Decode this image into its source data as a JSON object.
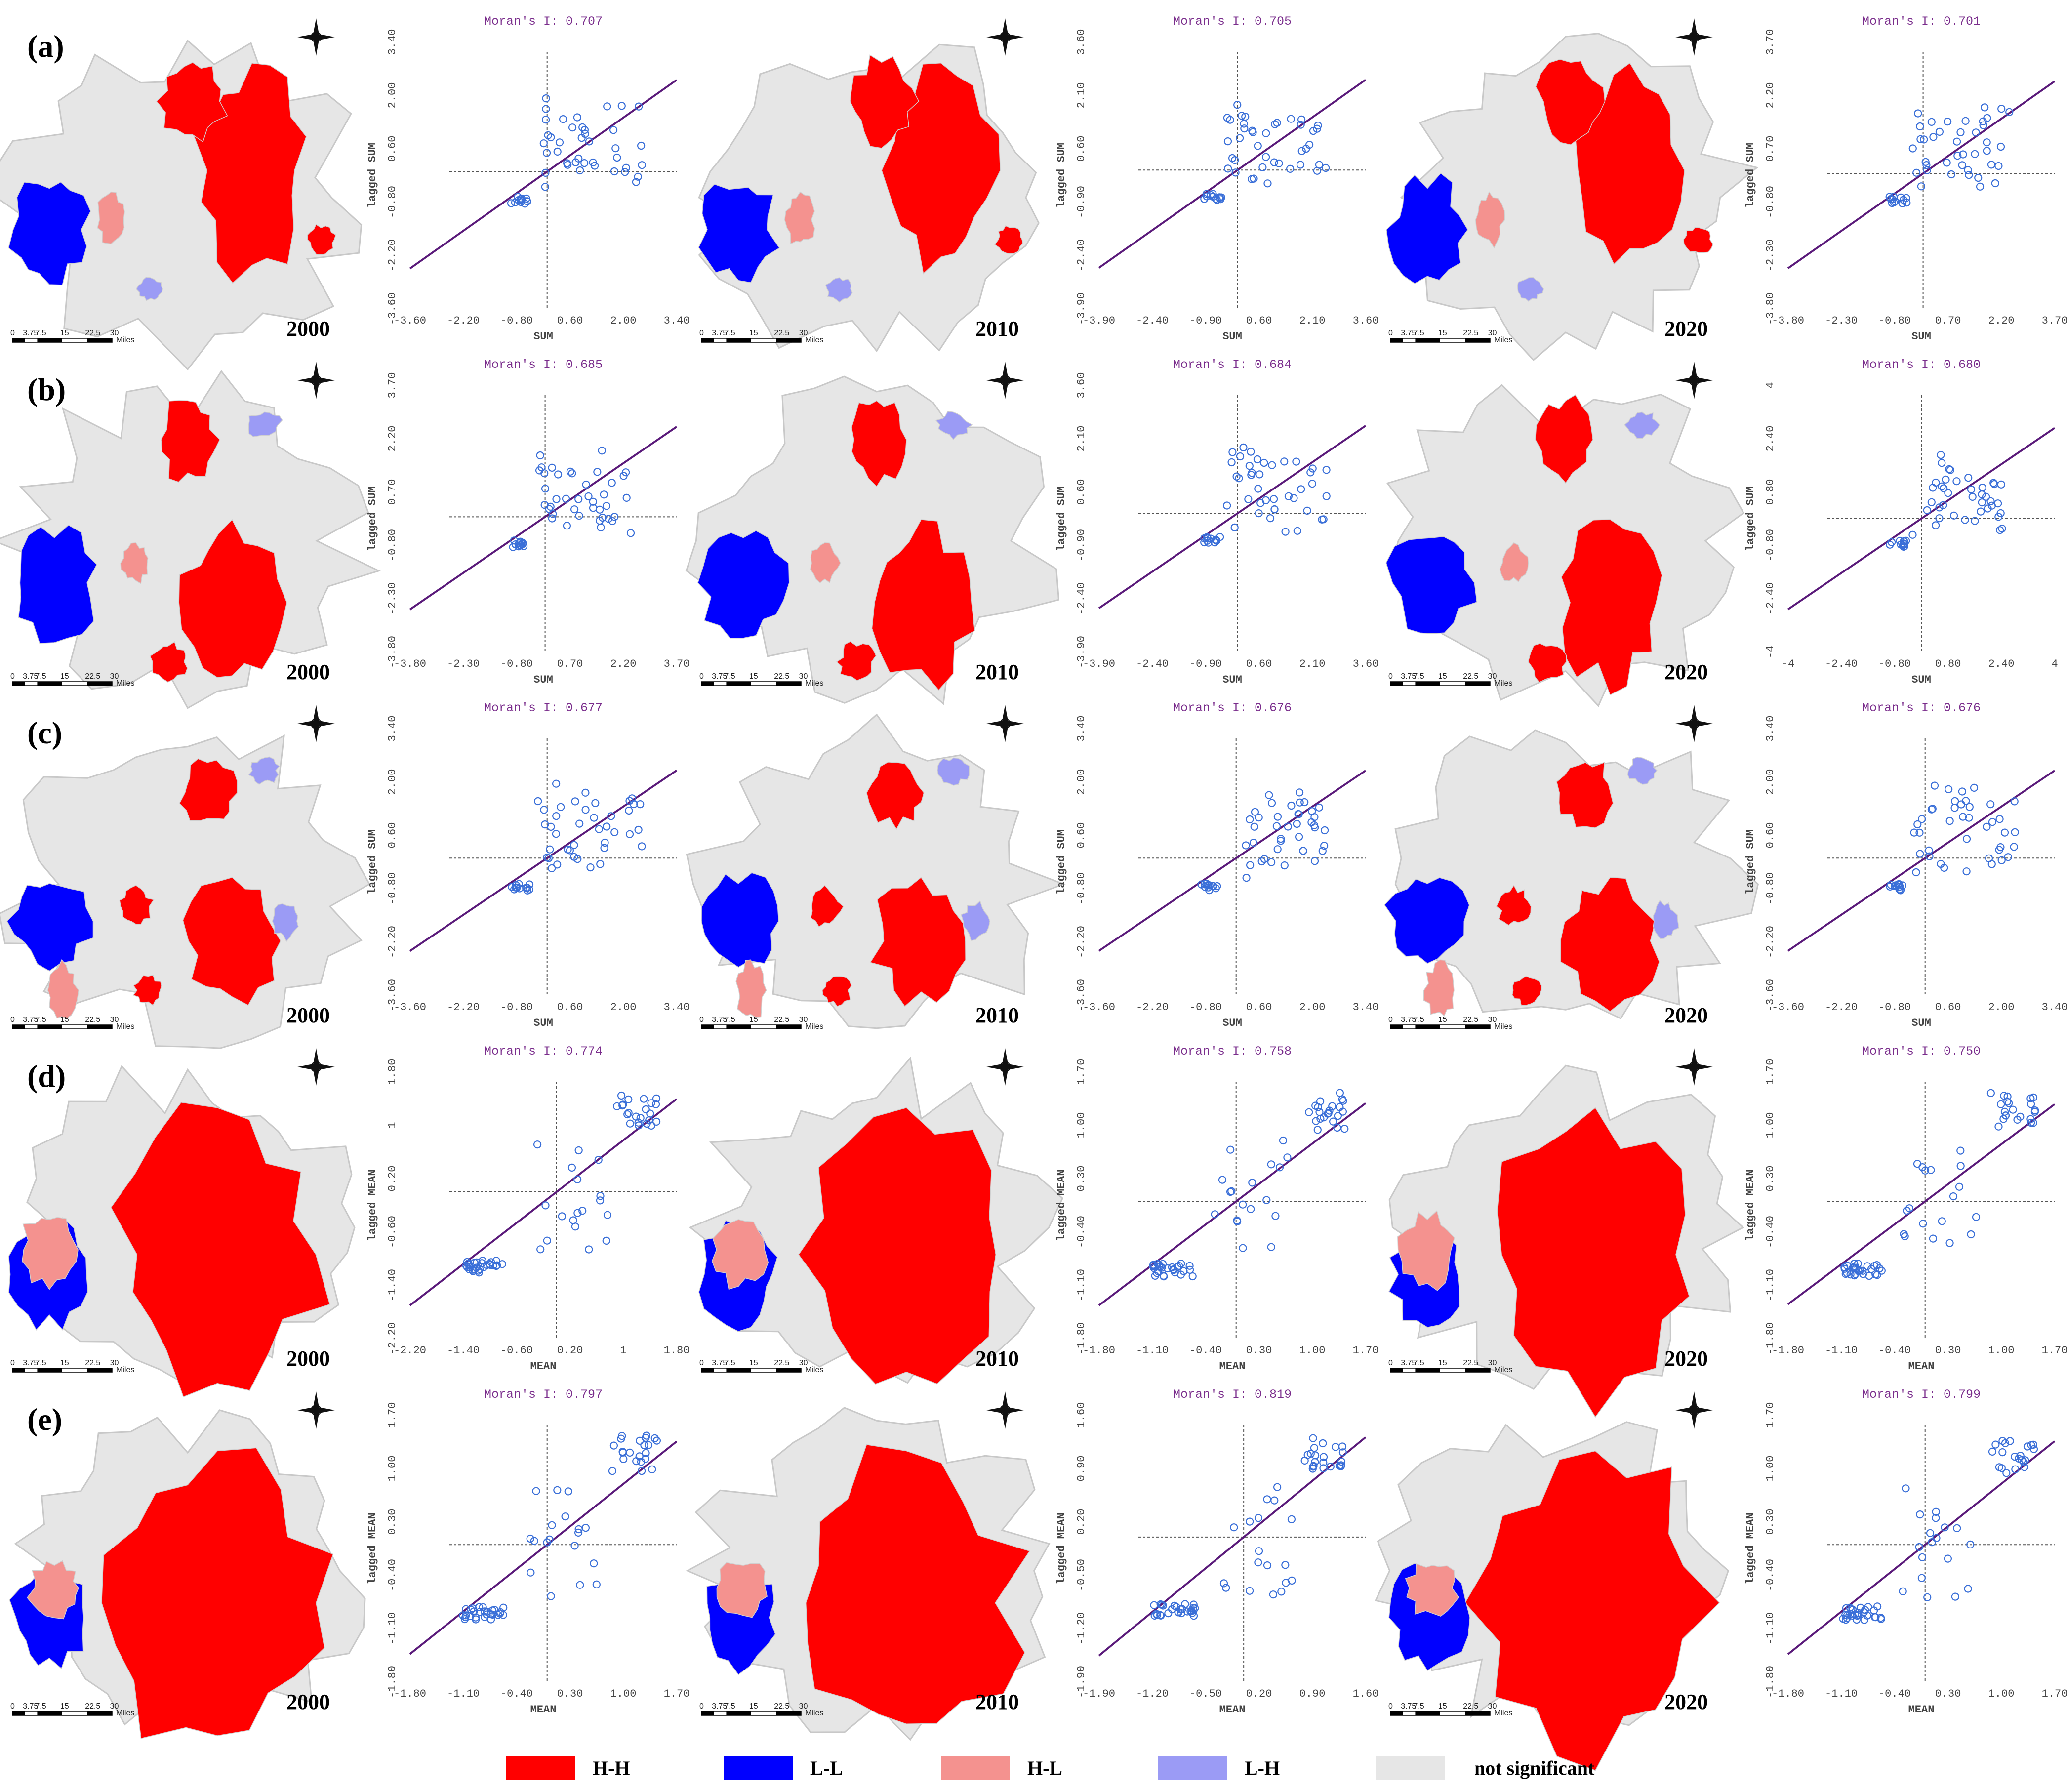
{
  "colors": {
    "HH": "#ff0000",
    "LL": "#0000ff",
    "HL": "#f4928f",
    "LH": "#9b9bf5",
    "NS": "#e6e6e6",
    "regression": "#5a1a7a",
    "points": "#3a6fd8"
  },
  "legend": [
    {
      "key": "HH",
      "label": "H-H"
    },
    {
      "key": "LL",
      "label": "L-L"
    },
    {
      "key": "HL",
      "label": "H-L"
    },
    {
      "key": "LH",
      "label": "L-H"
    },
    {
      "key": "NS",
      "label": "not significant"
    }
  ],
  "scale_bar": {
    "ticks": [
      "0",
      "3.75",
      "7.5",
      "15",
      "22.5",
      "30"
    ],
    "unit": "Miles"
  },
  "chart_data": [
    {
      "row": "(a)",
      "type": "scatter",
      "years": [
        "2000",
        "2010",
        "2020"
      ],
      "plots": [
        {
          "moran": "Moran's I: 0.707",
          "ticks": [
            "-3.60",
            "-2.20",
            "-0.80",
            "0.60",
            "2.00",
            "3.40"
          ],
          "xlabel": "SUM",
          "ylabel": "lagged SUM",
          "slope": 0.707,
          "seed": 11
        },
        {
          "moran": "Moran's I: 0.705",
          "ticks": [
            "-3.90",
            "-2.40",
            "-0.90",
            "0.60",
            "2.10",
            "3.60"
          ],
          "xlabel": "SUM",
          "ylabel": "lagged SUM",
          "slope": 0.705,
          "seed": 12
        },
        {
          "moran": "Moran's I: 0.701",
          "ticks": [
            "-3.80",
            "-2.30",
            "-0.80",
            "0.70",
            "2.20",
            "3.70"
          ],
          "xlabel": "SUM",
          "ylabel": "lagged SUM",
          "slope": 0.701,
          "seed": 13
        }
      ]
    },
    {
      "row": "(b)",
      "type": "scatter",
      "years": [
        "2000",
        "2010",
        "2020"
      ],
      "plots": [
        {
          "moran": "Moran's I: 0.685",
          "ticks": [
            "-3.80",
            "-2.30",
            "-0.80",
            "0.70",
            "2.20",
            "3.70"
          ],
          "xlabel": "SUM",
          "ylabel": "lagged SUM",
          "slope": 0.685,
          "seed": 21
        },
        {
          "moran": "Moran's I: 0.684",
          "ticks": [
            "-3.90",
            "-2.40",
            "-0.90",
            "0.60",
            "2.10",
            "3.60"
          ],
          "xlabel": "SUM",
          "ylabel": "lagged SUM",
          "slope": 0.684,
          "seed": 22
        },
        {
          "moran": "Moran's I: 0.680",
          "ticks": [
            "-4",
            "-2.40",
            "-0.80",
            "0.80",
            "2.40",
            "4"
          ],
          "xlabel": "SUM",
          "ylabel": "lagged SUM",
          "slope": 0.68,
          "seed": 23
        }
      ]
    },
    {
      "row": "(c)",
      "type": "scatter",
      "years": [
        "2000",
        "2010",
        "2020"
      ],
      "plots": [
        {
          "moran": "Moran's I: 0.677",
          "ticks": [
            "-3.60",
            "-2.20",
            "-0.80",
            "0.60",
            "2.00",
            "3.40"
          ],
          "xlabel": "SUM",
          "ylabel": "lagged SUM",
          "slope": 0.677,
          "seed": 31
        },
        {
          "moran": "Moran's I: 0.676",
          "ticks": [
            "-3.60",
            "-2.20",
            "-0.80",
            "0.60",
            "2.00",
            "3.40"
          ],
          "xlabel": "SUM",
          "ylabel": "lagged SUM",
          "slope": 0.676,
          "seed": 32
        },
        {
          "moran": "Moran's I: 0.676",
          "ticks": [
            "-3.60",
            "-2.20",
            "-0.80",
            "0.60",
            "2.00",
            "3.40"
          ],
          "xlabel": "SUM",
          "ylabel": "lagged SUM",
          "slope": 0.676,
          "seed": 33
        }
      ]
    },
    {
      "row": "(d)",
      "type": "scatter",
      "years": [
        "2000",
        "2010",
        "2020"
      ],
      "plots": [
        {
          "moran": "Moran's I: 0.774",
          "ticks": [
            "-2.20",
            "-1.40",
            "-0.60",
            "0.20",
            "1",
            "1.80"
          ],
          "xlabel": "MEAN",
          "ylabel": "lagged MEAN",
          "slope": 0.774,
          "seed": 41
        },
        {
          "moran": "Moran's I: 0.758",
          "ticks": [
            "-1.80",
            "-1.10",
            "-0.40",
            "0.30",
            "1.00",
            "1.70"
          ],
          "xlabel": "MEAN",
          "ylabel": "lagged MEAN",
          "slope": 0.758,
          "seed": 42
        },
        {
          "moran": "Moran's I: 0.750",
          "ticks": [
            "-1.80",
            "-1.10",
            "-0.40",
            "0.30",
            "1.00",
            "1.70"
          ],
          "xlabel": "MEAN",
          "ylabel": "lagged MEAN",
          "slope": 0.75,
          "seed": 43
        }
      ]
    },
    {
      "row": "(e)",
      "type": "scatter",
      "years": [
        "2000",
        "2010",
        "2020"
      ],
      "plots": [
        {
          "moran": "Moran's I: 0.797",
          "ticks": [
            "-1.80",
            "-1.10",
            "-0.40",
            "0.30",
            "1.00",
            "1.70"
          ],
          "xlabel": "MEAN",
          "ylabel": "lagged MEAN",
          "slope": 0.797,
          "seed": 51
        },
        {
          "moran": "Moran's I: 0.819",
          "ticks": [
            "-1.90",
            "-1.20",
            "-0.50",
            "0.20",
            "0.90",
            "1.60"
          ],
          "xlabel": "MEAN",
          "ylabel": "lagged MEAN",
          "slope": 0.819,
          "seed": 52
        },
        {
          "moran": "Moran's I: 0.799",
          "ticks": [
            "-1.80",
            "-1.10",
            "-0.40",
            "0.30",
            "1.00",
            "1.70"
          ],
          "xlabel": "MEAN",
          "ylabel": "lagged MEAN",
          "slope": 0.799,
          "seed": 53
        }
      ]
    }
  ]
}
